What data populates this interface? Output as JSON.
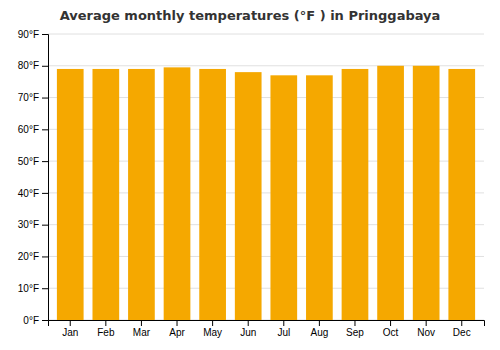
{
  "chart_data": {
    "type": "bar",
    "title": "Average monthly temperatures (°F ) in Pringgabaya",
    "categories": [
      "Jan",
      "Feb",
      "Mar",
      "Apr",
      "May",
      "Jun",
      "Jul",
      "Aug",
      "Sep",
      "Oct",
      "Nov",
      "Dec"
    ],
    "values": [
      79,
      79,
      79,
      79.5,
      79,
      78,
      77,
      77,
      79,
      80,
      80,
      79
    ],
    "color": "#F5A800",
    "ylim": [
      0,
      90
    ],
    "yticks": [
      {
        "value": 0,
        "label": "0°F"
      },
      {
        "value": 10,
        "label": "10°F"
      },
      {
        "value": 20,
        "label": "20°F"
      },
      {
        "value": 30,
        "label": "30°F"
      },
      {
        "value": 40,
        "label": "40°F"
      },
      {
        "value": 50,
        "label": "50°F"
      },
      {
        "value": 60,
        "label": "60°F"
      },
      {
        "value": 70,
        "label": "70°F"
      },
      {
        "value": 80,
        "label": "80°F"
      },
      {
        "value": 90,
        "label": "90°F"
      }
    ],
    "grid": true
  }
}
